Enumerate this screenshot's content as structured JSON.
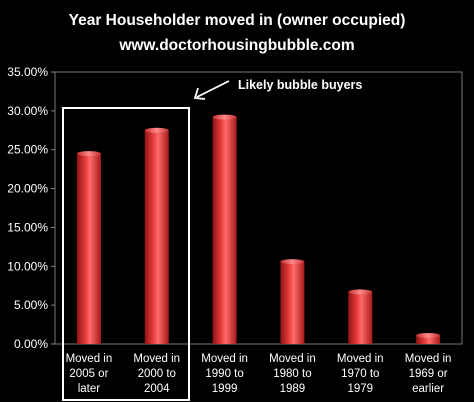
{
  "chart_data": {
    "type": "bar",
    "title_lines": [
      "Year Householder moved in (owner occupied)",
      "www.doctorhousingbubble.com"
    ],
    "categories": [
      [
        "Moved in",
        "2005 or",
        "later"
      ],
      [
        "Moved in",
        "2000 to",
        "2004"
      ],
      [
        "Moved in",
        "1990 to",
        "1999"
      ],
      [
        "Moved in",
        "1980 to",
        "1989"
      ],
      [
        "Moved in",
        "1970 to",
        "1979"
      ],
      [
        "Moved in",
        "1969 or",
        "earlier"
      ]
    ],
    "values": [
      24.5,
      27.5,
      29.2,
      10.6,
      6.7,
      1.1
    ],
    "ylim": [
      0,
      35
    ],
    "yticks": [
      "0.00%",
      "5.00%",
      "10.00%",
      "15.00%",
      "20.00%",
      "25.00%",
      "30.00%",
      "35.00%"
    ],
    "xlabel": "",
    "ylabel": "",
    "grid": false,
    "bar_color": "#e03131",
    "background": "#000000",
    "annotation": {
      "text": "Likely bubble buyers",
      "highlighted_categories": [
        0,
        1
      ]
    }
  }
}
